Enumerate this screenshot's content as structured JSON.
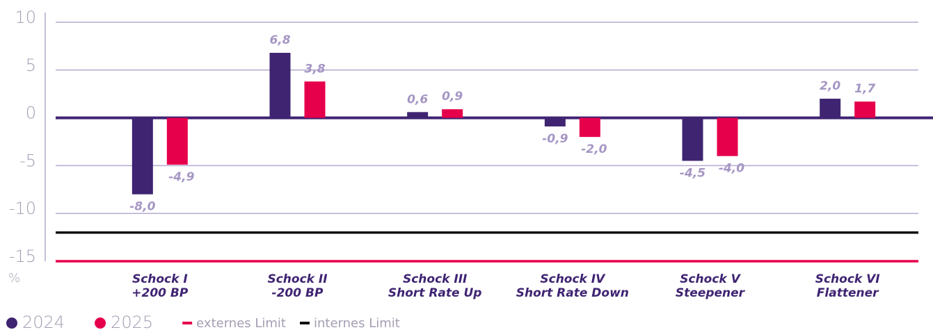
{
  "chart_data": {
    "type": "bar",
    "y_label": "%",
    "categories": [
      [
        "Schock I",
        "+200 BP"
      ],
      [
        "Schock II",
        "-200 BP"
      ],
      [
        "Schock III",
        "Short Rate Up"
      ],
      [
        "Schock IV",
        "Short Rate Down"
      ],
      [
        "Schock V",
        "Steepener"
      ],
      [
        "Schock VI",
        "Flattener"
      ]
    ],
    "series": [
      {
        "name": "2024",
        "color": "#3f2472",
        "values": [
          -8.0,
          6.8,
          0.6,
          -0.9,
          -4.5,
          2.0
        ],
        "value_labels": [
          "-8,0",
          "6,8",
          "0,6",
          "-0,9",
          "-4,5",
          "2,0"
        ]
      },
      {
        "name": "2025",
        "color": "#e6004c",
        "values": [
          -4.9,
          3.8,
          0.9,
          -2.0,
          -4.0,
          1.7
        ],
        "value_labels": [
          "-4,9",
          "3,8",
          "0,9",
          "-2,0",
          "-4,0",
          "1,7"
        ]
      }
    ],
    "limits": [
      {
        "name": "externes Limit",
        "value": -15,
        "color": "#e6004c"
      },
      {
        "name": "internes Limit",
        "value": -12,
        "color": "#111111"
      }
    ],
    "ylim": [
      -15,
      10
    ],
    "yticks": [
      -15,
      -10,
      -5,
      0,
      5,
      10
    ],
    "grid": true
  }
}
